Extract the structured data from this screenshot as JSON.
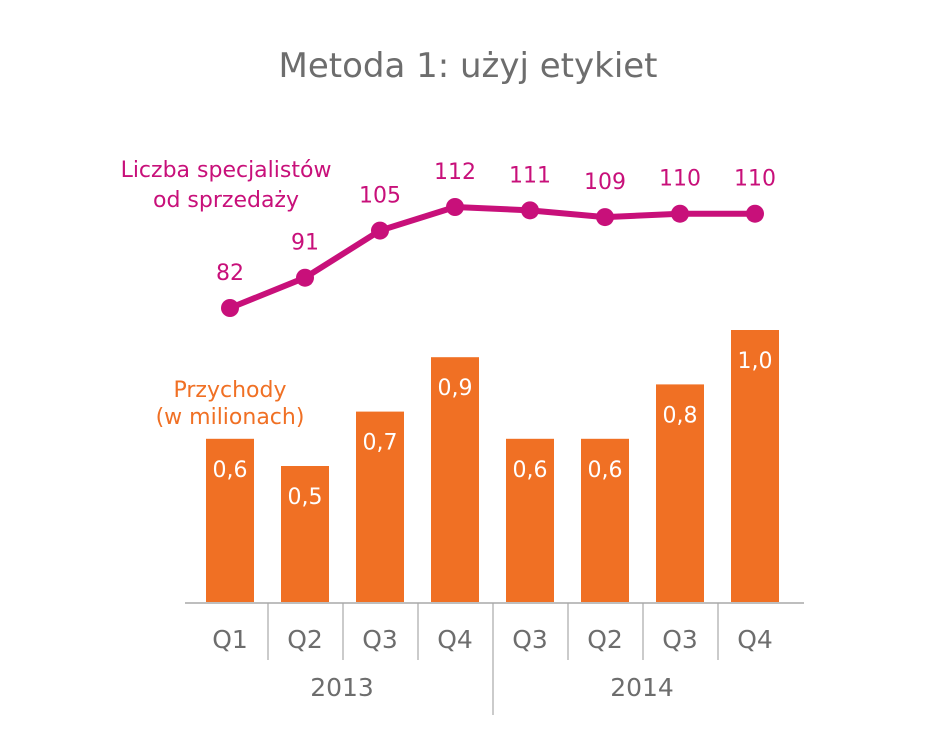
{
  "chart_data": {
    "type": "bar+line",
    "title": "Metoda 1: użyj etykiet",
    "categories": [
      "Q1",
      "Q2",
      "Q3",
      "Q4",
      "Q3",
      "Q2",
      "Q3",
      "Q4"
    ],
    "groups": [
      {
        "label": "2013",
        "categories": [
          "Q1",
          "Q2",
          "Q3",
          "Q4"
        ]
      },
      {
        "label": "2014",
        "categories": [
          "Q3",
          "Q2",
          "Q3",
          "Q4"
        ]
      }
    ],
    "series": [
      {
        "name": "Przychody (w milionach)",
        "name_lines": [
          "Przychody",
          "(w milionach)"
        ],
        "type": "bar",
        "color": "#f07024",
        "values": [
          0.6,
          0.5,
          0.7,
          0.9,
          0.6,
          0.6,
          0.8,
          1.0
        ],
        "labels": [
          "0,6",
          "0,5",
          "0,7",
          "0,9",
          "0,6",
          "0,6",
          "0,8",
          "1,0"
        ],
        "scale_max": 1.0
      },
      {
        "name": "Liczba specjalistów od sprzedaży",
        "name_lines": [
          "Liczba specjalistów",
          "od sprzedaży"
        ],
        "type": "line",
        "color": "#c8107a",
        "values": [
          82,
          91,
          105,
          112,
          111,
          109,
          110,
          110
        ],
        "labels": [
          "82",
          "91",
          "105",
          "112",
          "111",
          "109",
          "110",
          "110"
        ],
        "scale_range": [
          82,
          112
        ]
      }
    ],
    "colors": {
      "title": "#6d6d6d",
      "axis": "#a8a8a8",
      "tick_text": "#6d6d6d",
      "bar_label": "#ffffff"
    }
  }
}
